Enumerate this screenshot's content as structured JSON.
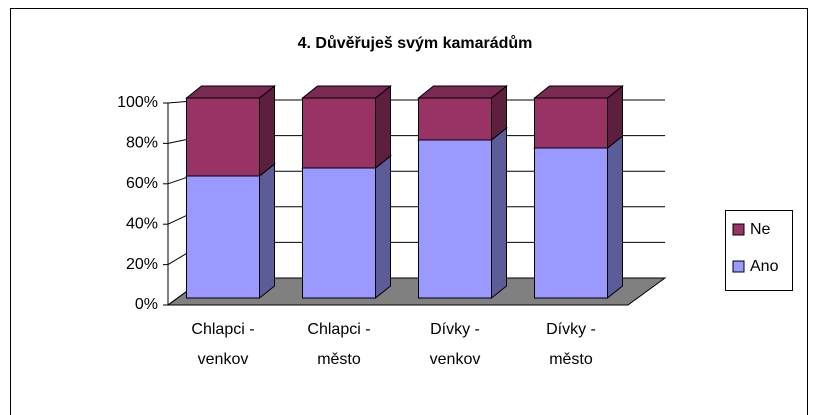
{
  "chart_data": {
    "type": "bar3d_stacked_percent",
    "title": "4. Důvěřuješ svým kamarádům",
    "categories": [
      "Chlapci - venkov",
      "Chlapci - město",
      "Dívky - venkov",
      "Dívky - město"
    ],
    "series": [
      {
        "name": "Ano",
        "color": "#9999ff",
        "values": [
          61,
          65,
          79,
          75
        ]
      },
      {
        "name": "Ne",
        "color": "#993366",
        "values": [
          39,
          35,
          21,
          25
        ]
      }
    ],
    "ylim": [
      0,
      100
    ],
    "yticks": [
      {
        "value": 0,
        "label": "0%"
      },
      {
        "value": 20,
        "label": "20%"
      },
      {
        "value": 40,
        "label": "40%"
      },
      {
        "value": 60,
        "label": "60%"
      },
      {
        "value": 80,
        "label": "80%"
      },
      {
        "value": 100,
        "label": "100%"
      }
    ],
    "grid": true,
    "legend": "right"
  }
}
